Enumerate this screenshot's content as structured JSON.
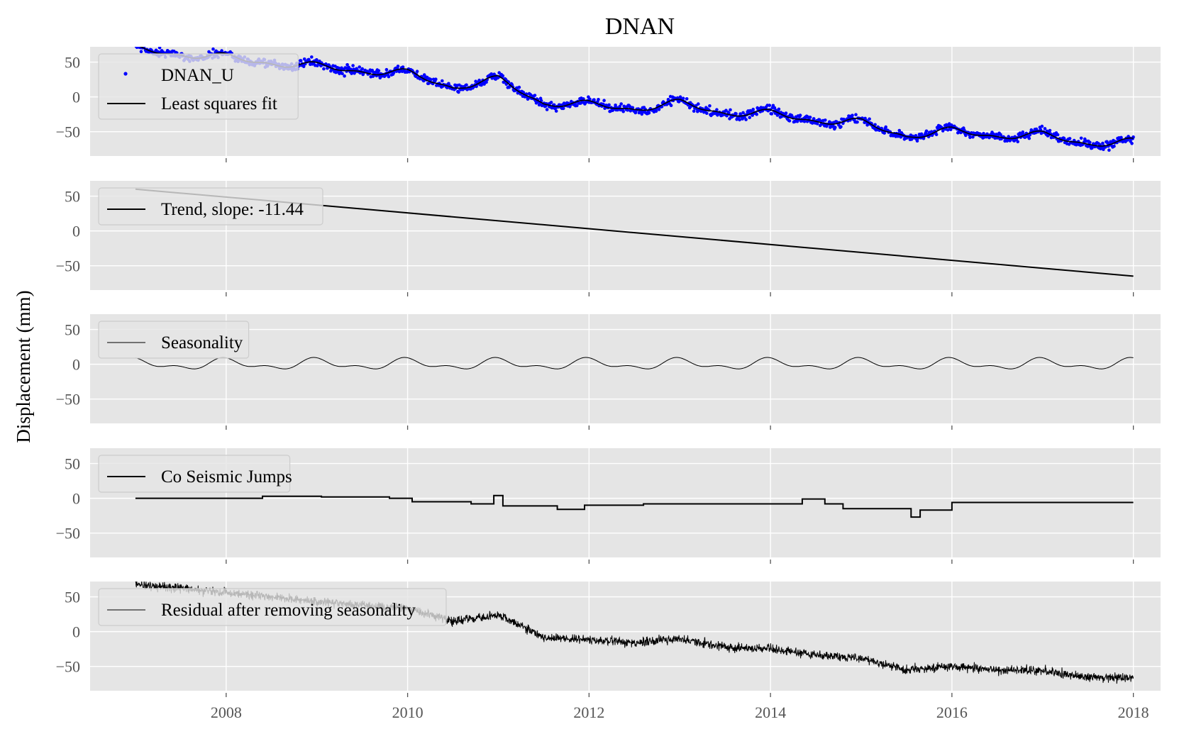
{
  "chart_data": {
    "type": "line",
    "title": "DNAN",
    "ylabel": "Displacement (mm)",
    "xlabel": "",
    "xlim": [
      2006.5,
      2018.3
    ],
    "ylim": [
      -85,
      72
    ],
    "x_ticks": [
      2008,
      2010,
      2012,
      2014,
      2016,
      2018
    ],
    "y_ticks": [
      50,
      0,
      -50
    ],
    "tick_labels_x": [
      "2008",
      "2010",
      "2012",
      "2014",
      "2016",
      "2018"
    ],
    "tick_labels_y": [
      "50",
      "0",
      "−50"
    ],
    "time_range": [
      2007.0,
      2018.0
    ],
    "grid": true,
    "legend_position": "upper-left",
    "panels": [
      {
        "id": "observations",
        "series": [
          {
            "name": "DNAN_U",
            "kind": "scatter",
            "color": "#0000ff"
          },
          {
            "name": "Least squares fit",
            "kind": "line",
            "color": "#000000"
          }
        ]
      },
      {
        "id": "trend",
        "series": [
          {
            "name": "Trend, slope: -11.44",
            "kind": "line",
            "color": "#000000",
            "slope_mm_per_year": -11.44,
            "start": [
              2007.0,
              60
            ],
            "end": [
              2018.0,
              -65
            ]
          }
        ]
      },
      {
        "id": "seasonality",
        "series": [
          {
            "name": "Seasonality",
            "kind": "line",
            "color": "#000000",
            "amplitude_mm": 10,
            "period_years": 1
          }
        ]
      },
      {
        "id": "jumps",
        "series": [
          {
            "name": "Co Seismic Jumps",
            "kind": "step",
            "color": "#000000",
            "steps": [
              [
                2007.0,
                0
              ],
              [
                2008.4,
                3
              ],
              [
                2009.05,
                2
              ],
              [
                2009.8,
                0
              ],
              [
                2010.05,
                -5
              ],
              [
                2010.7,
                -8
              ],
              [
                2010.95,
                4
              ],
              [
                2011.05,
                -11
              ],
              [
                2011.65,
                -16
              ],
              [
                2011.95,
                -10
              ],
              [
                2012.6,
                -8
              ],
              [
                2014.35,
                -1
              ],
              [
                2014.6,
                -8
              ],
              [
                2014.8,
                -15
              ],
              [
                2015.55,
                -27
              ],
              [
                2015.65,
                -17
              ],
              [
                2016.0,
                -6
              ],
              [
                2018.0,
                -6
              ]
            ]
          }
        ]
      },
      {
        "id": "residual",
        "series": [
          {
            "name": "Residual after removing seasonality",
            "kind": "line",
            "color": "#000000"
          }
        ]
      }
    ],
    "fit_anchors": [
      [
        2007.0,
        68
      ],
      [
        2008.0,
        56
      ],
      [
        2009.0,
        43
      ],
      [
        2010.0,
        33
      ],
      [
        2010.5,
        15
      ],
      [
        2011.0,
        24
      ],
      [
        2011.5,
        -8
      ],
      [
        2012.0,
        -12
      ],
      [
        2012.5,
        -16
      ],
      [
        2013.0,
        -10
      ],
      [
        2013.5,
        -22
      ],
      [
        2014.0,
        -25
      ],
      [
        2014.5,
        -33
      ],
      [
        2015.0,
        -38
      ],
      [
        2015.5,
        -55
      ],
      [
        2016.0,
        -50
      ],
      [
        2016.5,
        -55
      ],
      [
        2017.0,
        -56
      ],
      [
        2017.5,
        -66
      ],
      [
        2018.0,
        -66
      ]
    ]
  }
}
